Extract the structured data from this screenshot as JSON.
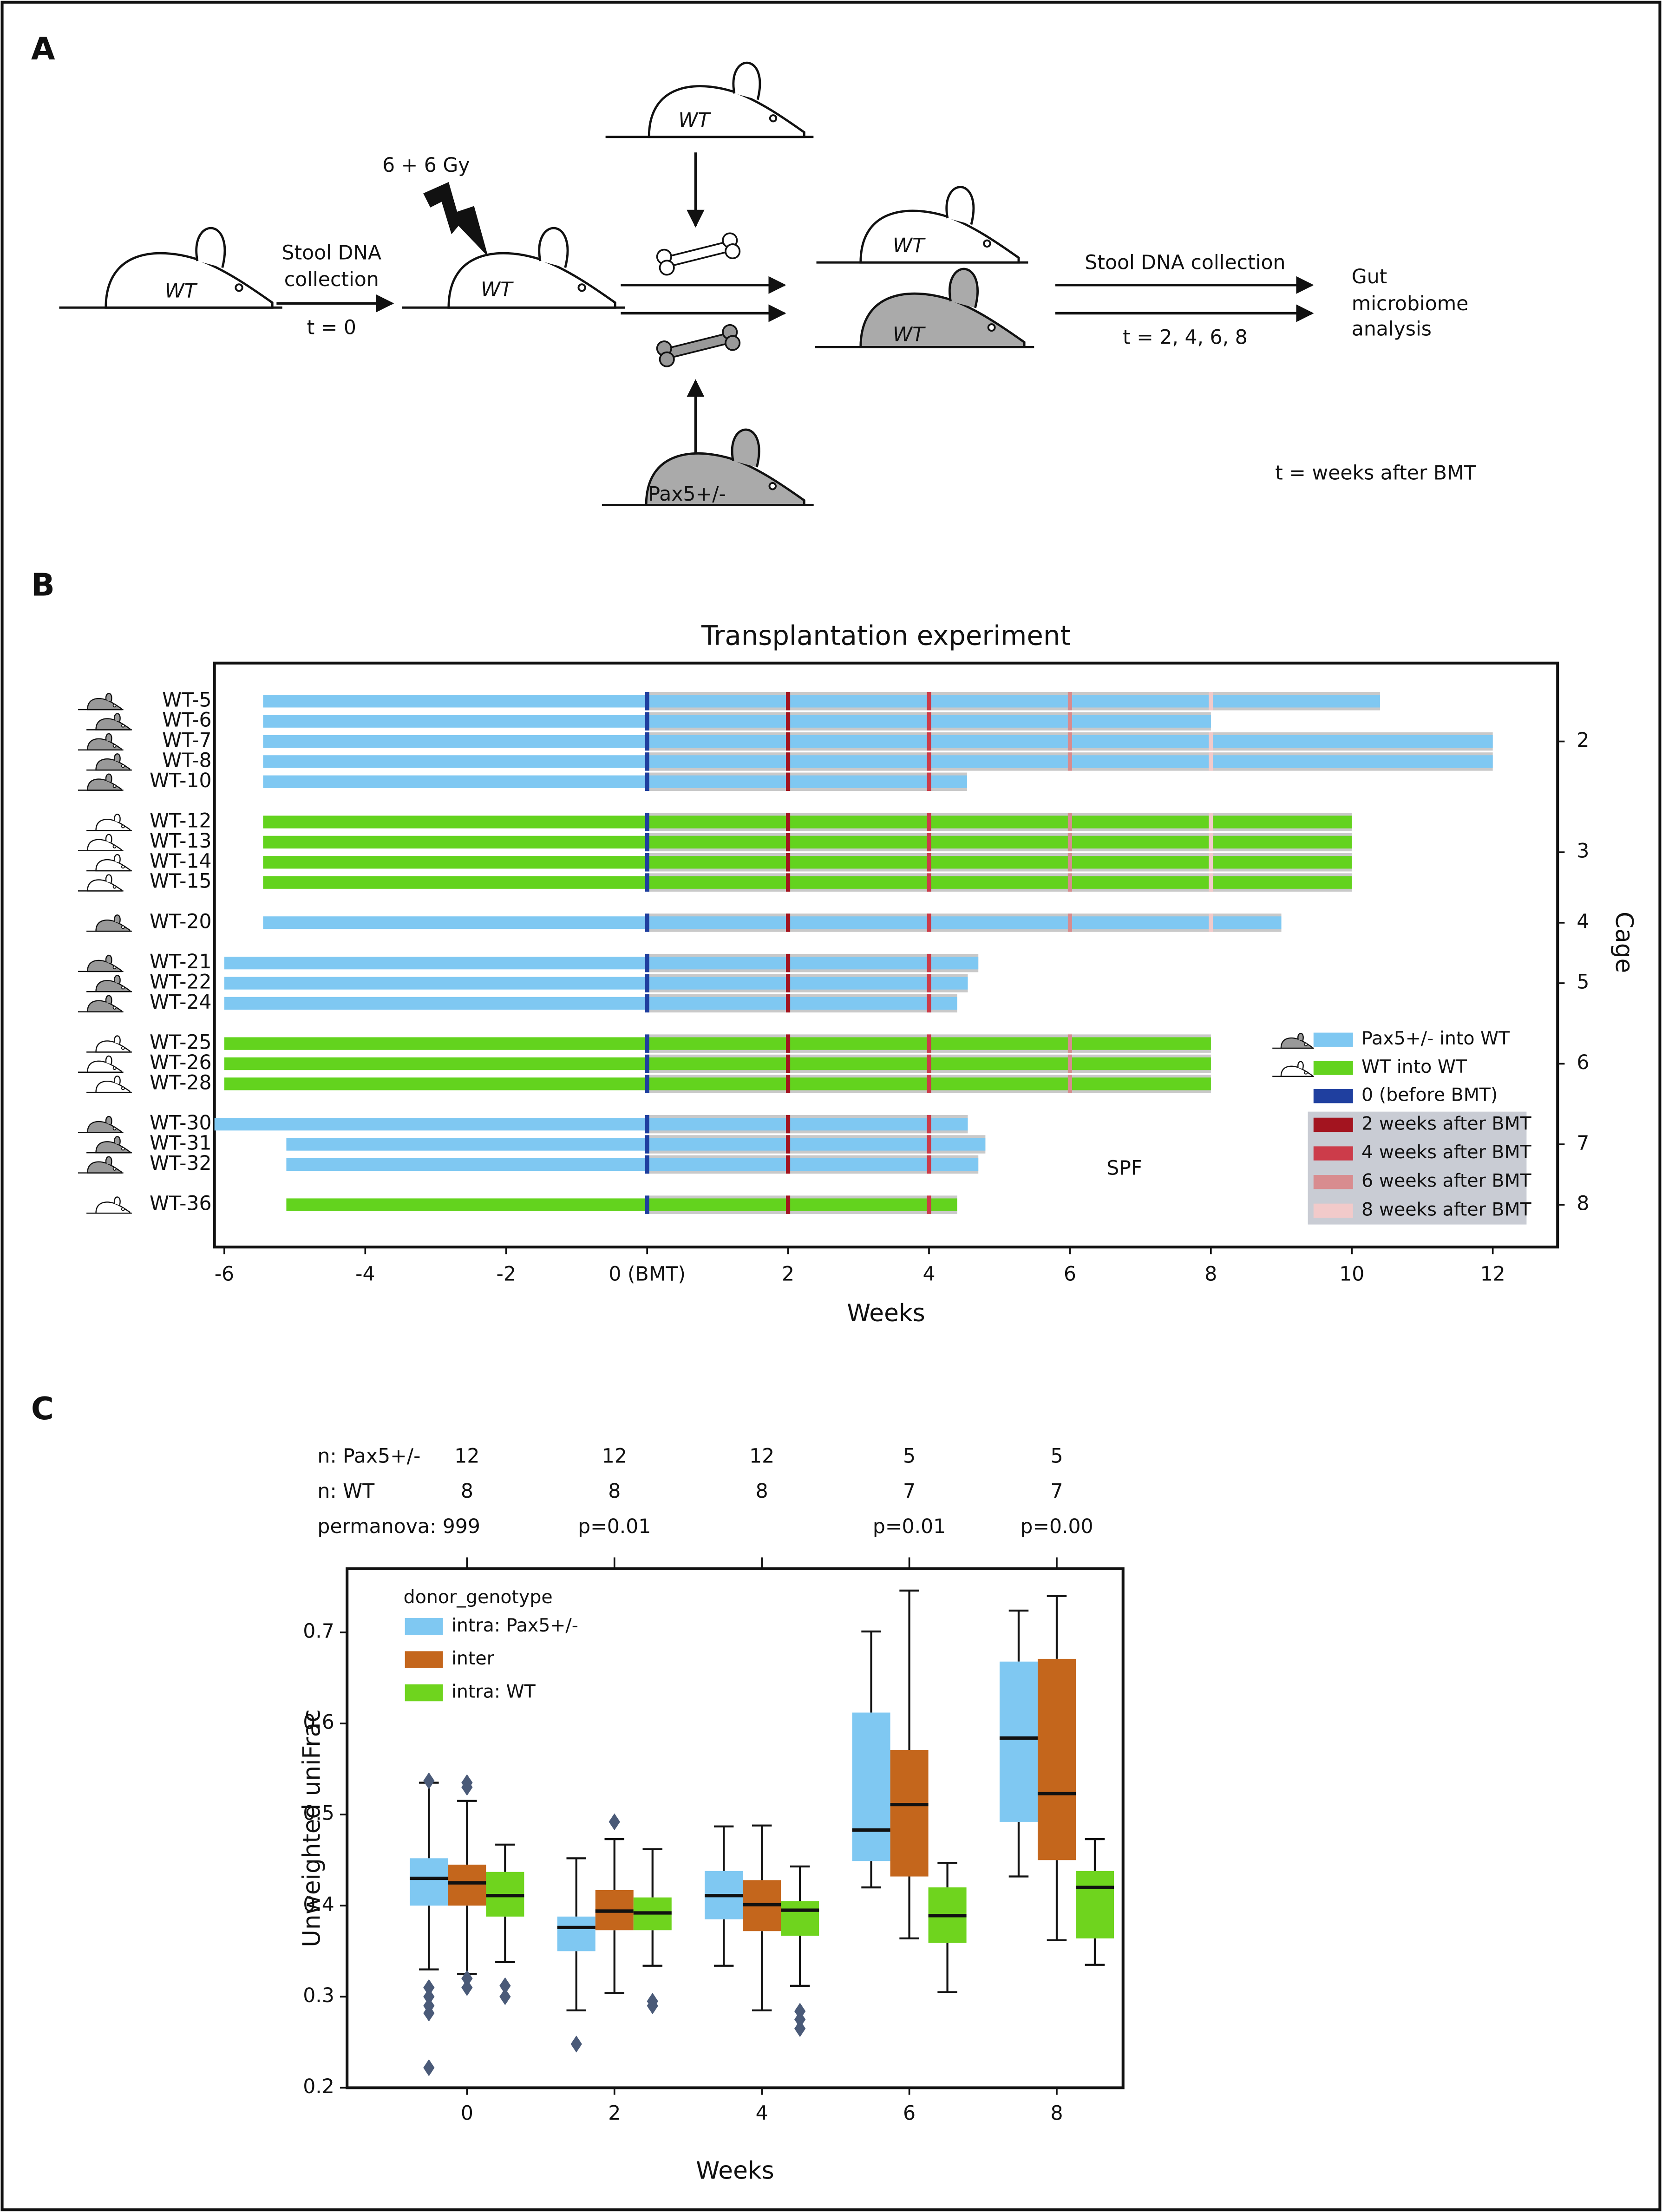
{
  "panels": [
    "A",
    "B",
    "C"
  ],
  "panel_a": {
    "mice": [
      "WT",
      "WT",
      "WT",
      "Pax5+/-",
      "WT",
      "WT"
    ],
    "dose": "6 + 6 Gy",
    "collection_1": [
      "Stool DNA",
      "collection"
    ],
    "time_1": "t = 0",
    "collection_2": "Stool DNA collection",
    "time_2": "t = 2, 4, 6, 8",
    "outcome": [
      "Gut",
      "microbiome",
      "analysis"
    ],
    "note": "t = weeks after BMT"
  },
  "chart_data": [
    {
      "type": "gantt",
      "title": "Transplantation experiment",
      "xlabel": "Weeks",
      "y2label": "Cage",
      "xlim": [
        -6.14,
        12.92
      ],
      "xticks": [
        -6,
        -4,
        -2,
        {
          "value": 0,
          "label": "0 (BMT)"
        },
        2,
        4,
        6,
        8,
        10,
        12
      ],
      "series": [
        {
          "name": "Pax5+/- into WT",
          "color": "#7fc8f2"
        },
        {
          "name": "WT into WT",
          "color": "#63d31e"
        }
      ],
      "timepoints": [
        {
          "name": "0 (before BMT)",
          "value": 0,
          "color": "#1f3f9f"
        },
        {
          "name": "2 weeks after BMT",
          "value": 2,
          "color": "#a3141f"
        },
        {
          "name": "4 weeks after BMT",
          "value": 4,
          "color": "#cc3c4a"
        },
        {
          "name": "6 weeks after BMT",
          "value": 6,
          "color": "#d88c8f"
        },
        {
          "name": "8 weeks after BMT",
          "value": 8,
          "color": "#f2caca"
        }
      ],
      "rows": [
        {
          "name": "WT-5",
          "group": 0,
          "cage": 2,
          "start": -5.45,
          "end": 10.4
        },
        {
          "name": "WT-6",
          "group": 0,
          "cage": 2,
          "start": -5.45,
          "end": 8
        },
        {
          "name": "WT-7",
          "group": 0,
          "cage": 2,
          "start": -5.45,
          "end": 12
        },
        {
          "name": "WT-8",
          "group": 0,
          "cage": 2,
          "start": -5.45,
          "end": 12
        },
        {
          "name": "WT-10",
          "group": 0,
          "cage": 2,
          "start": -5.45,
          "end": 4.54
        },
        {
          "name": "WT-12",
          "group": 1,
          "cage": 3,
          "start": -5.45,
          "end": 10
        },
        {
          "name": "WT-13",
          "group": 1,
          "cage": 3,
          "start": -5.45,
          "end": 10
        },
        {
          "name": "WT-14",
          "group": 1,
          "cage": 3,
          "start": -5.45,
          "end": 10
        },
        {
          "name": "WT-15",
          "group": 1,
          "cage": 3,
          "start": -5.45,
          "end": 10
        },
        {
          "name": "WT-20",
          "group": 0,
          "cage": 4,
          "start": -5.45,
          "end": 9
        },
        {
          "name": "WT-21",
          "group": 0,
          "cage": 5,
          "start": -6,
          "end": 4.7
        },
        {
          "name": "WT-22",
          "group": 0,
          "cage": 5,
          "start": -6,
          "end": 4.55
        },
        {
          "name": "WT-24",
          "group": 0,
          "cage": 5,
          "start": -6,
          "end": 4.4
        },
        {
          "name": "WT-25",
          "group": 1,
          "cage": 6,
          "start": -6,
          "end": 8
        },
        {
          "name": "WT-26",
          "group": 1,
          "cage": 6,
          "start": -6,
          "end": 8
        },
        {
          "name": "WT-28",
          "group": 1,
          "cage": 6,
          "start": -6,
          "end": 8
        },
        {
          "name": "WT-30",
          "group": 0,
          "cage": 7,
          "start": -6.14,
          "end": 4.55
        },
        {
          "name": "WT-31",
          "group": 0,
          "cage": 7,
          "start": -5.12,
          "end": 4.8
        },
        {
          "name": "WT-32",
          "group": 0,
          "cage": 7,
          "start": -5.12,
          "end": 4.7
        },
        {
          "name": "WT-36",
          "group": 1,
          "cage": 8,
          "start": -5.12,
          "end": 4.4
        }
      ],
      "annotation": "SPF"
    },
    {
      "type": "box",
      "xlabel": "Weeks",
      "ylabel": "Unweighted uniFrac",
      "categories": [
        "0",
        "2",
        "4",
        "6",
        "8"
      ],
      "ylim": [
        0.2,
        0.77
      ],
      "yticks": [
        0.2,
        0.3,
        0.4,
        0.5,
        0.6,
        0.7
      ],
      "legend_title": "donor_genotype",
      "legend": "upper left",
      "header": [
        {
          "label": "n: Pax5+/-",
          "values": [
            12,
            12,
            12,
            5,
            5
          ]
        },
        {
          "label": "n: WT",
          "values": [
            8,
            8,
            8,
            7,
            7
          ]
        },
        {
          "label": "permanova: 999",
          "values": [
            null,
            "p=0.01",
            null,
            "p=0.01",
            "p=0.00"
          ]
        }
      ],
      "outlier_color": "#4a5a78",
      "series": [
        {
          "name": "intra: Pax5+/-",
          "color": "#7fc8f2",
          "values": [
            {
              "min": 0.33,
              "q1": 0.4,
              "median": 0.43,
              "q3": 0.452,
              "max": 0.535,
              "outliers": [
                0.537,
                0.31,
                0.3,
                0.29,
                0.282,
                0.222
              ]
            },
            {
              "min": 0.285,
              "q1": 0.35,
              "median": 0.376,
              "q3": 0.388,
              "max": 0.452,
              "outliers": [
                0.248
              ]
            },
            {
              "min": 0.334,
              "q1": 0.385,
              "median": 0.411,
              "q3": 0.438,
              "max": 0.487,
              "outliers": []
            },
            {
              "min": 0.42,
              "q1": 0.449,
              "median": 0.483,
              "q3": 0.612,
              "max": 0.701,
              "outliers": []
            },
            {
              "min": 0.432,
              "q1": 0.492,
              "median": 0.584,
              "q3": 0.668,
              "max": 0.724,
              "outliers": []
            }
          ]
        },
        {
          "name": "inter",
          "color": "#c4661c",
          "values": [
            {
              "min": 0.325,
              "q1": 0.4,
              "median": 0.425,
              "q3": 0.445,
              "max": 0.515,
              "outliers": [
                0.535,
                0.53,
                0.32,
                0.31
              ]
            },
            {
              "min": 0.304,
              "q1": 0.373,
              "median": 0.394,
              "q3": 0.417,
              "max": 0.473,
              "outliers": [
                0.492
              ]
            },
            {
              "min": 0.285,
              "q1": 0.372,
              "median": 0.401,
              "q3": 0.428,
              "max": 0.488,
              "outliers": []
            },
            {
              "min": 0.364,
              "q1": 0.432,
              "median": 0.511,
              "q3": 0.571,
              "max": 0.746,
              "outliers": []
            },
            {
              "min": 0.362,
              "q1": 0.45,
              "median": 0.523,
              "q3": 0.671,
              "max": 0.74,
              "outliers": []
            }
          ]
        },
        {
          "name": "intra: WT",
          "color": "#6fd41e",
          "values": [
            {
              "min": 0.338,
              "q1": 0.388,
              "median": 0.411,
              "q3": 0.437,
              "max": 0.467,
              "outliers": [
                0.312,
                0.3
              ]
            },
            {
              "min": 0.334,
              "q1": 0.373,
              "median": 0.392,
              "q3": 0.409,
              "max": 0.462,
              "outliers": [
                0.295,
                0.29
              ]
            },
            {
              "min": 0.312,
              "q1": 0.367,
              "median": 0.395,
              "q3": 0.405,
              "max": 0.443,
              "outliers": [
                0.284,
                0.275,
                0.265
              ]
            },
            {
              "min": 0.305,
              "q1": 0.359,
              "median": 0.389,
              "q3": 0.42,
              "max": 0.447,
              "outliers": []
            },
            {
              "min": 0.335,
              "q1": 0.364,
              "median": 0.42,
              "q3": 0.438,
              "max": 0.473,
              "outliers": []
            }
          ]
        }
      ]
    }
  ]
}
